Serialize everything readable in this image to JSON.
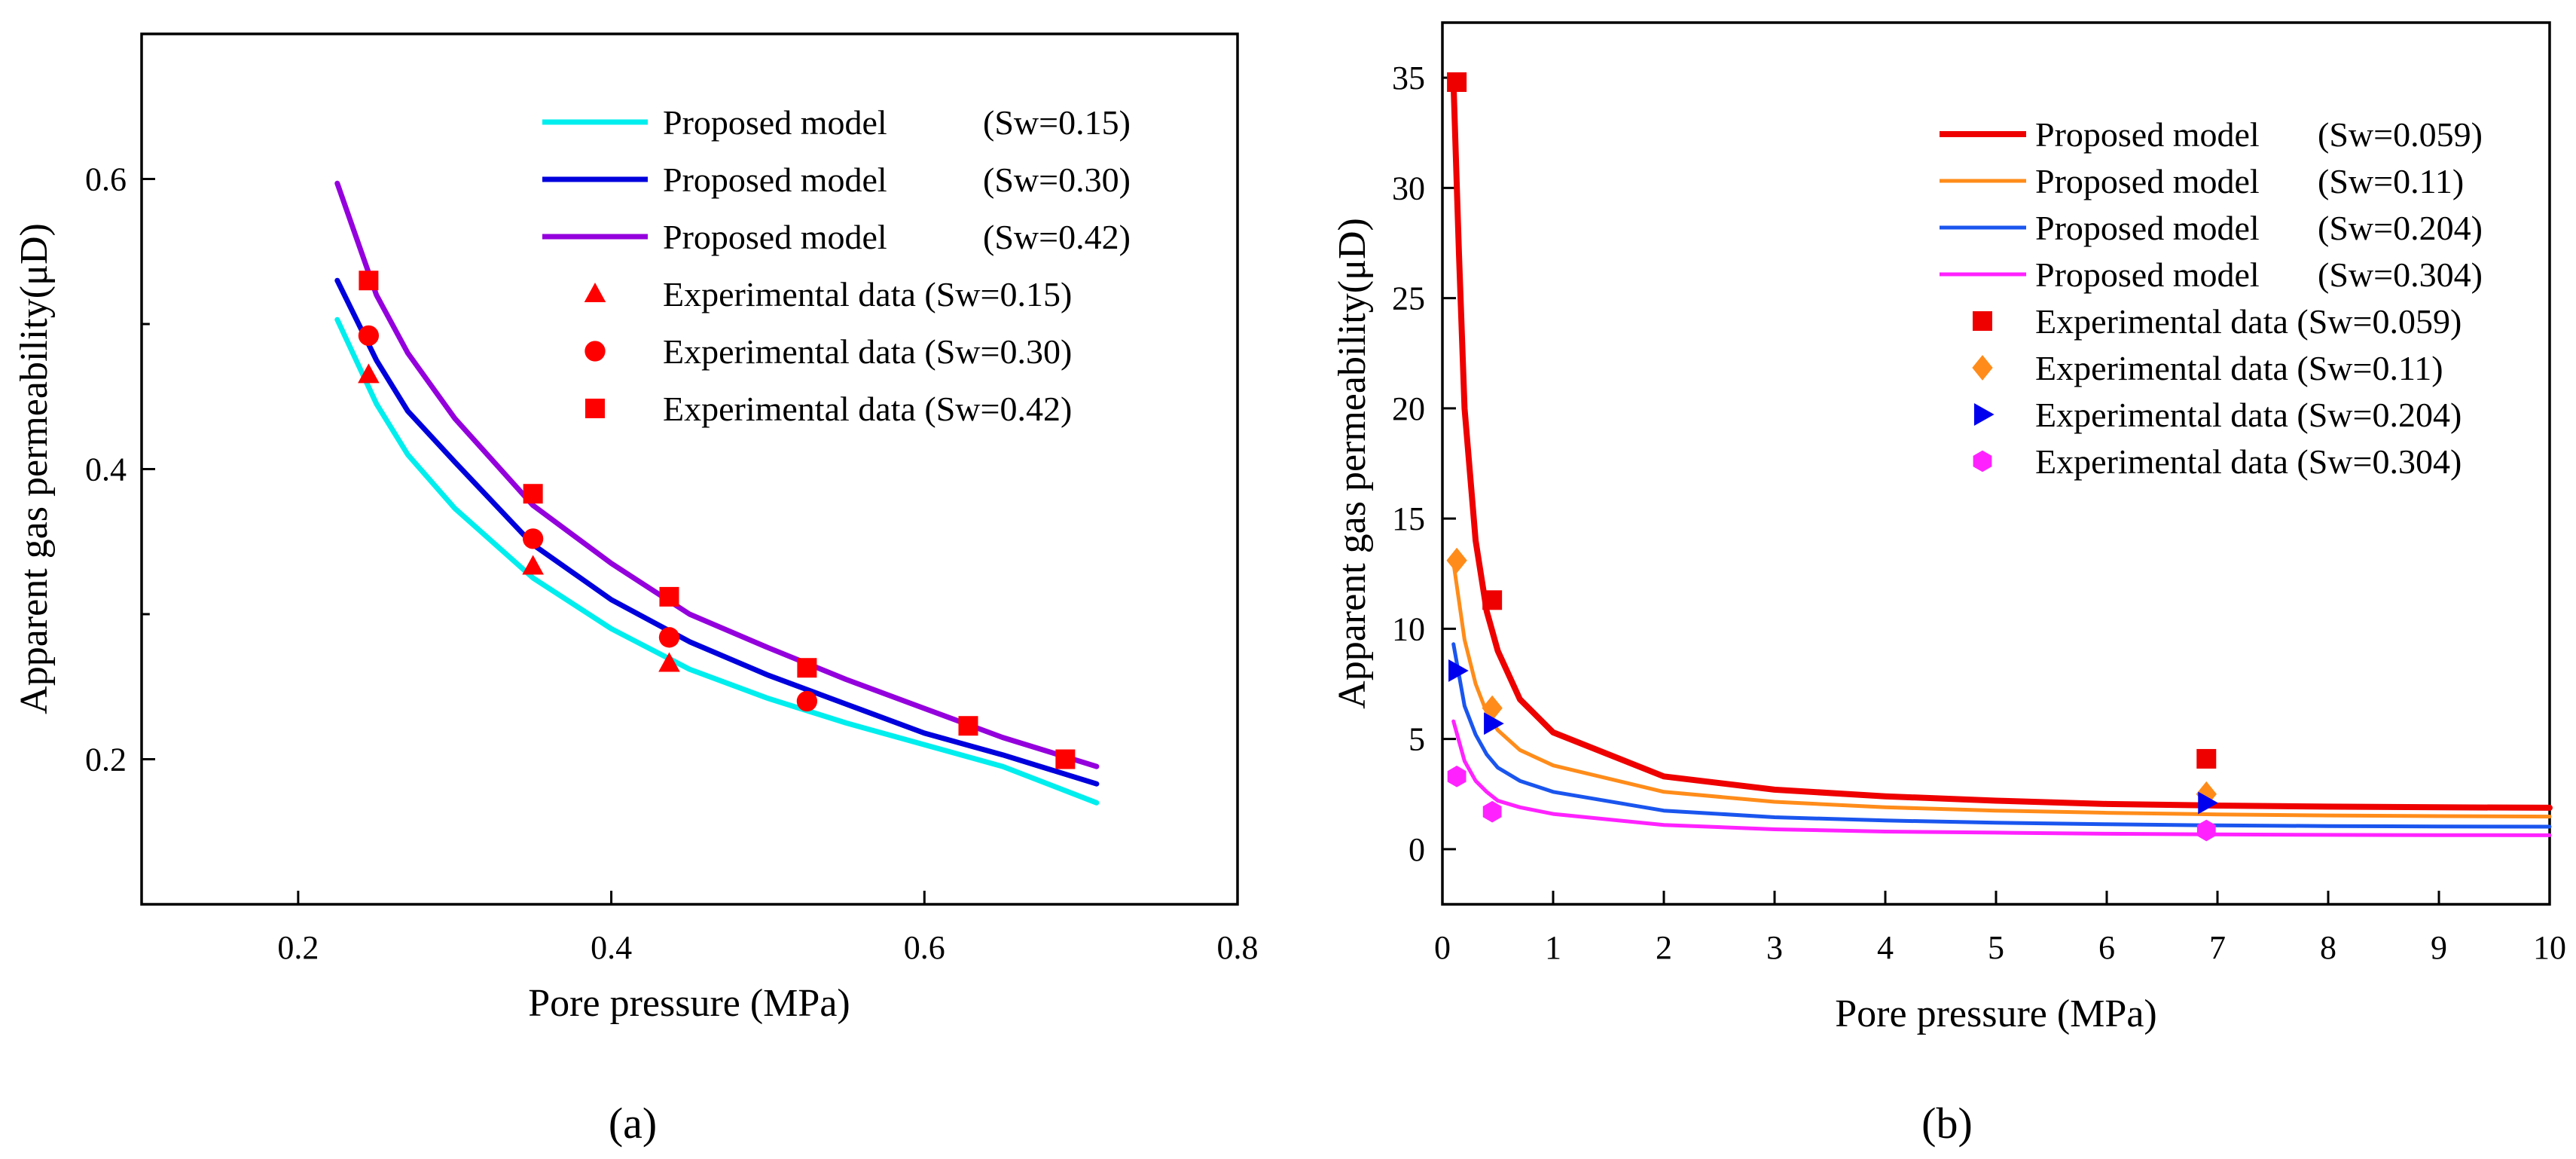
{
  "chart_data": [
    {
      "panel": "a",
      "type": "line",
      "panel_label": "(a)",
      "xlabel": "Pore pressure (MPa)",
      "ylabel": "Apparent gas permeability(μD)",
      "xlim": [
        0.1,
        0.8
      ],
      "ylim": [
        0.1,
        0.7
      ],
      "xticks": [
        0.2,
        0.4,
        0.6,
        0.8
      ],
      "xtick_labels": [
        "0.2",
        "0.4",
        "0.6",
        "0.8"
      ],
      "yticks": [
        0.2,
        0.4,
        0.6
      ],
      "ytick_labels": [
        "0.2",
        "0.4",
        "0.6"
      ],
      "minor_yticks": [
        0.3,
        0.5
      ],
      "legend_position": "top-right",
      "series": [
        {
          "name": "Proposed model",
          "legend_label": "Proposed model",
          "legend_suffix": "(Sw=0.15)",
          "kind": "line",
          "color": "#00eeee",
          "width": 7,
          "x": [
            0.225,
            0.25,
            0.27,
            0.3,
            0.35,
            0.4,
            0.45,
            0.5,
            0.55,
            0.6,
            0.65,
            0.71
          ],
          "y": [
            0.503,
            0.445,
            0.41,
            0.373,
            0.325,
            0.29,
            0.262,
            0.242,
            0.225,
            0.21,
            0.195,
            0.17
          ]
        },
        {
          "name": "Proposed model",
          "legend_label": "Proposed model",
          "legend_suffix": "(Sw=0.30)",
          "kind": "line",
          "color": "#0000dd",
          "width": 7,
          "x": [
            0.225,
            0.25,
            0.27,
            0.3,
            0.35,
            0.4,
            0.45,
            0.5,
            0.55,
            0.6,
            0.65,
            0.71
          ],
          "y": [
            0.53,
            0.475,
            0.44,
            0.405,
            0.348,
            0.31,
            0.281,
            0.258,
            0.238,
            0.218,
            0.203,
            0.183
          ]
        },
        {
          "name": "Proposed model",
          "legend_label": "Proposed model",
          "legend_suffix": "(Sw=0.42)",
          "kind": "line",
          "color": "#9400dd",
          "width": 7,
          "x": [
            0.225,
            0.25,
            0.27,
            0.3,
            0.35,
            0.4,
            0.45,
            0.5,
            0.55,
            0.6,
            0.65,
            0.71
          ],
          "y": [
            0.597,
            0.52,
            0.48,
            0.435,
            0.375,
            0.335,
            0.3,
            0.277,
            0.255,
            0.235,
            0.215,
            0.195
          ]
        },
        {
          "name": "Experimental data (Sw=0.15)",
          "legend_label": "Experimental data (Sw=0.15)",
          "legend_suffix": "",
          "kind": "marker",
          "marker": "triangle",
          "color": "#ff0000",
          "x": [
            0.245,
            0.35,
            0.437
          ],
          "y": [
            0.465,
            0.333,
            0.266
          ]
        },
        {
          "name": "Experimental data (Sw=0.30)",
          "legend_label": "Experimental data (Sw=0.30)",
          "legend_suffix": "",
          "kind": "marker",
          "marker": "circle",
          "color": "#ff0000",
          "x": [
            0.245,
            0.35,
            0.437,
            0.525
          ],
          "y": [
            0.492,
            0.352,
            0.284,
            0.24
          ]
        },
        {
          "name": "Experimental data (Sw=0.42)",
          "legend_label": "Experimental data (Sw=0.42)",
          "legend_suffix": "",
          "kind": "marker",
          "marker": "square",
          "color": "#ff0000",
          "x": [
            0.245,
            0.35,
            0.437,
            0.525,
            0.628,
            0.69
          ],
          "y": [
            0.53,
            0.383,
            0.312,
            0.263,
            0.223,
            0.2
          ]
        }
      ]
    },
    {
      "panel": "b",
      "type": "line",
      "panel_label": "(b)",
      "xlabel": "Pore pressure (MPa)",
      "ylabel": "Apparent gas permeability(μD)",
      "xlim": [
        0,
        10
      ],
      "ylim": [
        -2.5,
        37.5
      ],
      "xticks": [
        0,
        1,
        2,
        3,
        4,
        5,
        6,
        7,
        8,
        9,
        10
      ],
      "xtick_labels": [
        "0",
        "1",
        "2",
        "3",
        "4",
        "5",
        "6",
        "7",
        "8",
        "9",
        "10"
      ],
      "yticks": [
        0,
        5,
        10,
        15,
        20,
        25,
        30,
        35
      ],
      "ytick_labels": [
        "0",
        "5",
        "10",
        "15",
        "20",
        "25",
        "30",
        "35"
      ],
      "legend_position": "top-right",
      "series": [
        {
          "name": "Proposed model",
          "legend_label": "Proposed model",
          "legend_suffix": "(Sw=0.059)",
          "kind": "line",
          "color": "#ee0000",
          "width": 8,
          "x": [
            0.1,
            0.15,
            0.2,
            0.3,
            0.4,
            0.5,
            0.7,
            1,
            2,
            3,
            4,
            5,
            6,
            7,
            8,
            9,
            10
          ],
          "y": [
            34.8,
            27,
            20,
            14,
            10.8,
            9,
            6.8,
            5.3,
            3.3,
            2.7,
            2.4,
            2.2,
            2.05,
            1.98,
            1.93,
            1.9,
            1.88
          ]
        },
        {
          "name": "Proposed model",
          "legend_label": "Proposed model",
          "legend_suffix": "(Sw=0.11)",
          "kind": "line",
          "color": "#ff8c1a",
          "width": 5,
          "x": [
            0.1,
            0.2,
            0.3,
            0.4,
            0.5,
            0.7,
            1,
            2,
            3,
            4,
            5,
            6,
            7,
            8,
            9,
            10
          ],
          "y": [
            13,
            9.5,
            7.5,
            6.2,
            5.4,
            4.5,
            3.8,
            2.6,
            2.15,
            1.9,
            1.75,
            1.65,
            1.58,
            1.53,
            1.5,
            1.48
          ]
        },
        {
          "name": "Proposed model",
          "legend_label": "Proposed model",
          "legend_suffix": "(Sw=0.204)",
          "kind": "line",
          "color": "#1a55ee",
          "width": 5,
          "x": [
            0.1,
            0.2,
            0.3,
            0.4,
            0.5,
            0.7,
            1,
            2,
            3,
            4,
            5,
            6,
            7,
            8,
            9,
            10
          ],
          "y": [
            9.3,
            6.5,
            5.2,
            4.3,
            3.7,
            3.1,
            2.6,
            1.75,
            1.45,
            1.3,
            1.2,
            1.13,
            1.08,
            1.05,
            1.03,
            1.02
          ]
        },
        {
          "name": "Proposed model",
          "legend_label": "Proposed model",
          "legend_suffix": "(Sw=0.304)",
          "kind": "line",
          "color": "#ff22ff",
          "width": 5,
          "x": [
            0.1,
            0.2,
            0.3,
            0.4,
            0.5,
            0.7,
            1,
            2,
            3,
            4,
            5,
            6,
            7,
            8,
            9,
            10
          ],
          "y": [
            5.8,
            4.0,
            3.1,
            2.6,
            2.2,
            1.9,
            1.6,
            1.1,
            0.9,
            0.8,
            0.75,
            0.7,
            0.67,
            0.65,
            0.64,
            0.63
          ]
        },
        {
          "name": "Experimental data (Sw=0.059)",
          "legend_label": "Experimental data (Sw=0.059)",
          "legend_suffix": "",
          "kind": "marker",
          "marker": "square",
          "color": "#ee0000",
          "x": [
            0.13,
            0.45,
            6.9
          ],
          "y": [
            34.8,
            11.3,
            4.1
          ]
        },
        {
          "name": "Experimental data (Sw=0.11)",
          "legend_label": "Experimental data (Sw=0.11)",
          "legend_suffix": "",
          "kind": "marker",
          "marker": "diamond",
          "color": "#ff8c1a",
          "x": [
            0.13,
            0.45,
            6.9
          ],
          "y": [
            13.1,
            6.4,
            2.5
          ]
        },
        {
          "name": "Experimental data (Sw=0.204)",
          "legend_label": "Experimental data (Sw=0.204)",
          "legend_suffix": "",
          "kind": "marker",
          "marker": "triangle-right",
          "color": "#0000ee",
          "x": [
            0.13,
            0.45,
            6.9
          ],
          "y": [
            8.1,
            5.7,
            2.1
          ]
        },
        {
          "name": "Experimental data (Sw=0.304)",
          "legend_label": "Experimental data (Sw=0.304)",
          "legend_suffix": "",
          "kind": "marker",
          "marker": "hexagon",
          "color": "#ff22ff",
          "x": [
            0.13,
            0.45,
            6.9
          ],
          "y": [
            3.3,
            1.7,
            0.85
          ]
        }
      ]
    }
  ]
}
